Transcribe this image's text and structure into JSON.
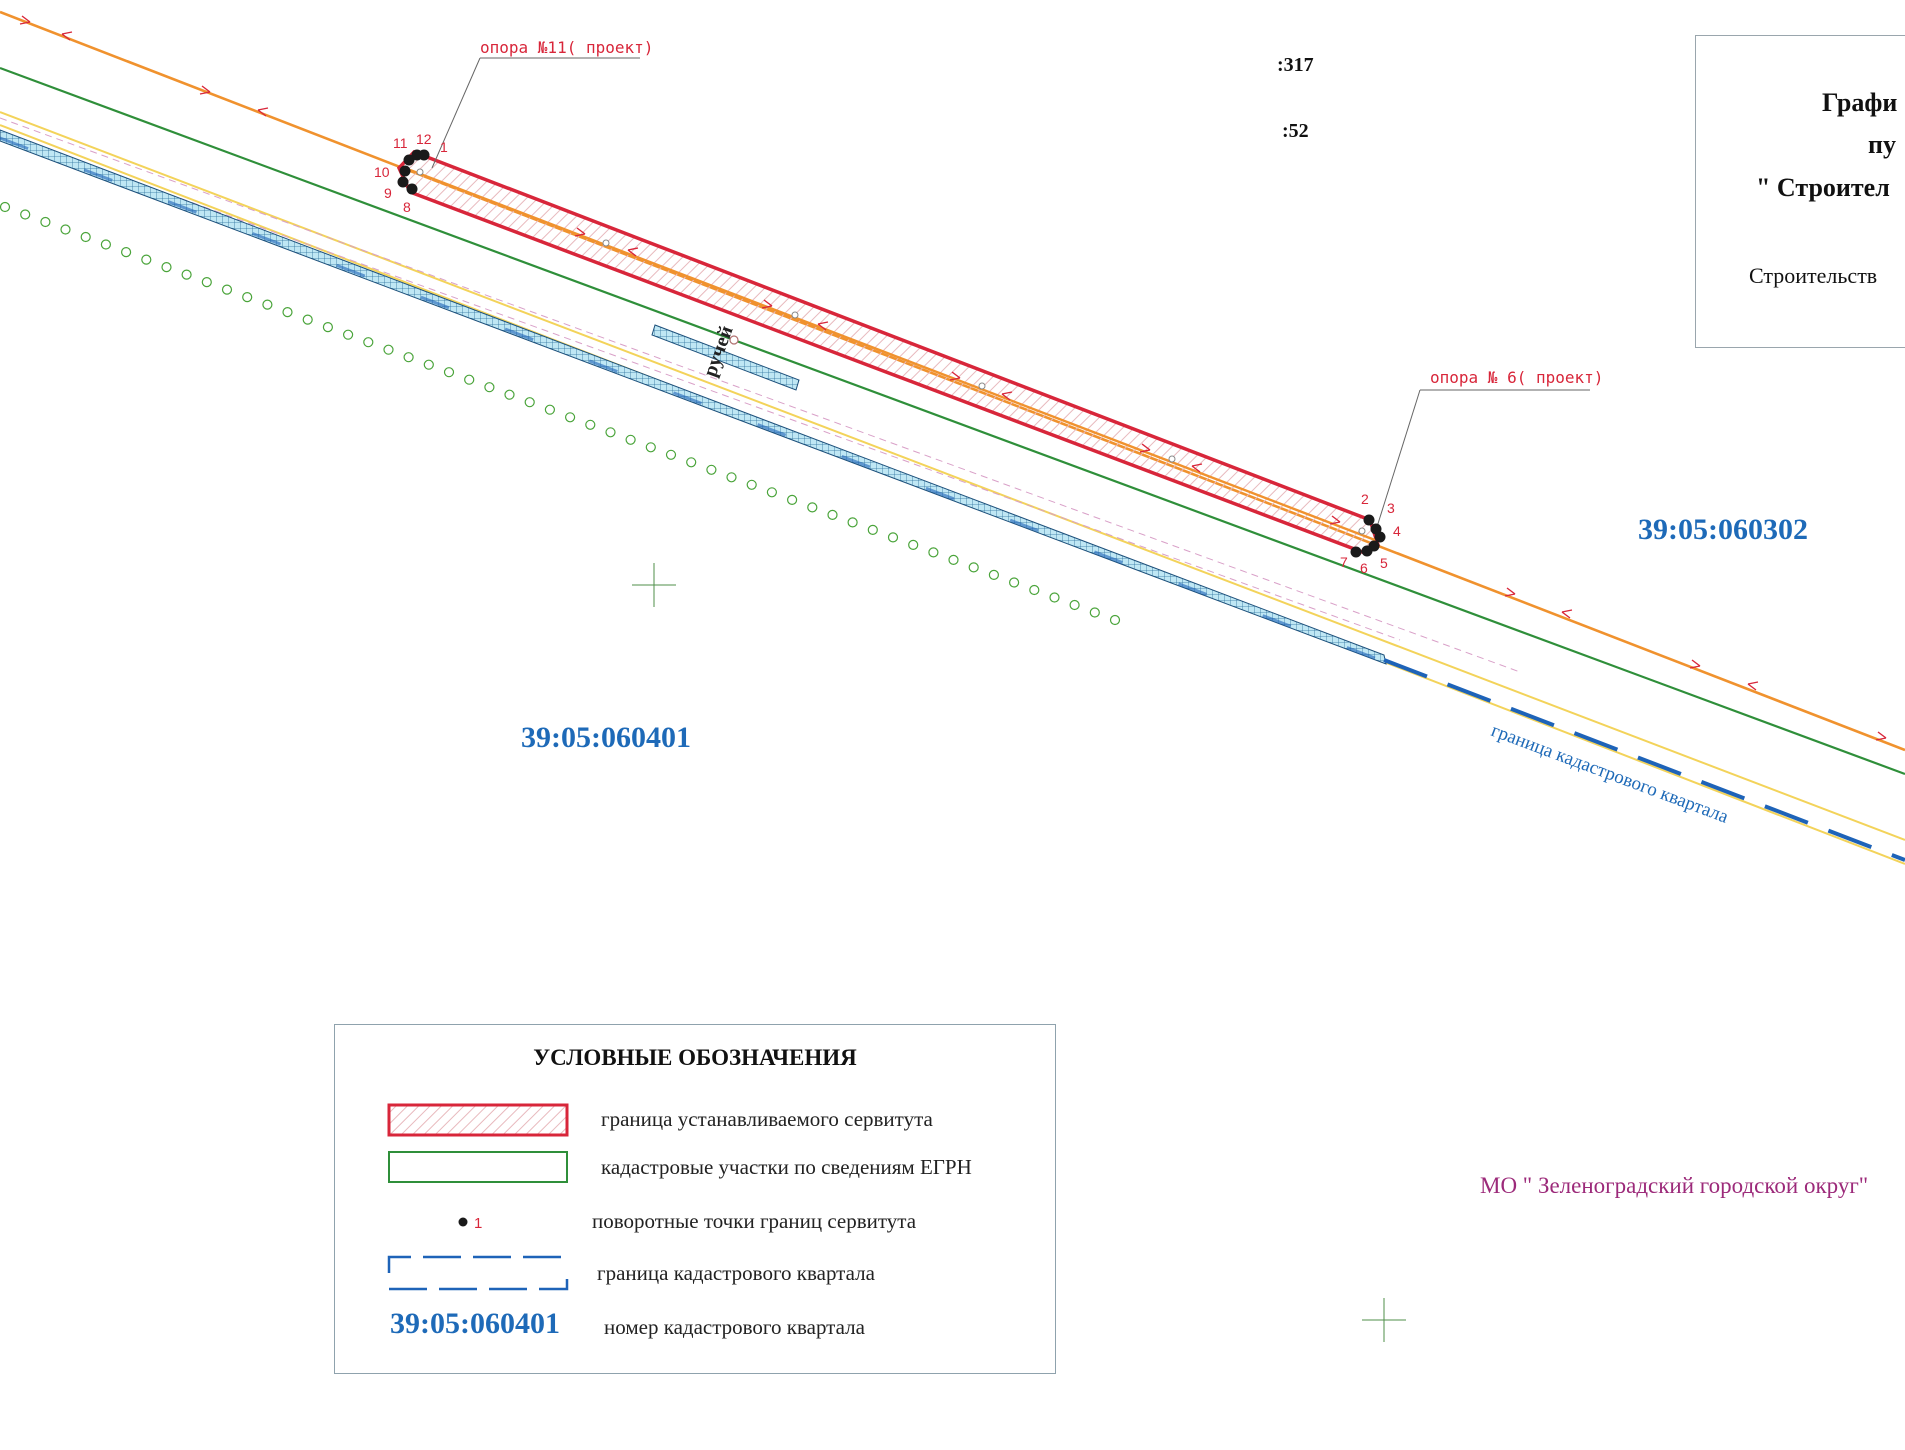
{
  "title_block": {
    "line1": "Графи",
    "line2": "пу",
    "line3": "\" Строител",
    "line4": "Строительств"
  },
  "parcel_refs": [
    ":317",
    ":52"
  ],
  "pole_labels": {
    "pole_11": "опора №11( проект)",
    "pole_6": "опора № 6( проект)"
  },
  "turn_points": [
    "1",
    "2",
    "3",
    "4",
    "5",
    "6",
    "7",
    "8",
    "9",
    "10",
    "11",
    "12"
  ],
  "quarters": {
    "q401": "39:05:060401",
    "q302": "39:05:060302"
  },
  "ditch_label": "ручей",
  "quarter_boundary_label": "граница кадастрового квартала",
  "municipality": "МО \" Зеленоградский городской округ\"",
  "legend": {
    "title": "УСЛОВНЫЕ ОБОЗНАЧЕНИЯ",
    "items": [
      {
        "symbol": "red-hatched-rect",
        "label": "граница устанавливаемого сервитута"
      },
      {
        "symbol": "green-rect",
        "label": "кадастровые участки по сведениям ЕГРН"
      },
      {
        "symbol": "point-1",
        "point_label": "1",
        "label": "поворотные точки границ сервитута"
      },
      {
        "symbol": "blue-dashed-rect",
        "label": "граница кадастрового квартала"
      },
      {
        "symbol": "quarter-number",
        "sample": "39:05:060401",
        "label": "номер  кадастрового квартала"
      }
    ]
  },
  "colors": {
    "servitude": "#d8263a",
    "parcel": "#2f8f3a",
    "quarter_boundary": "#1e63b8",
    "power_line": "#f0922e",
    "road_edge": "#f3d35a",
    "points": "#1a1a1a",
    "municipality": "#9c2a7a",
    "quarter_number": "#1e6ab8"
  },
  "icons": [
    "crosshair-icon",
    "arrow-marker-icon"
  ]
}
